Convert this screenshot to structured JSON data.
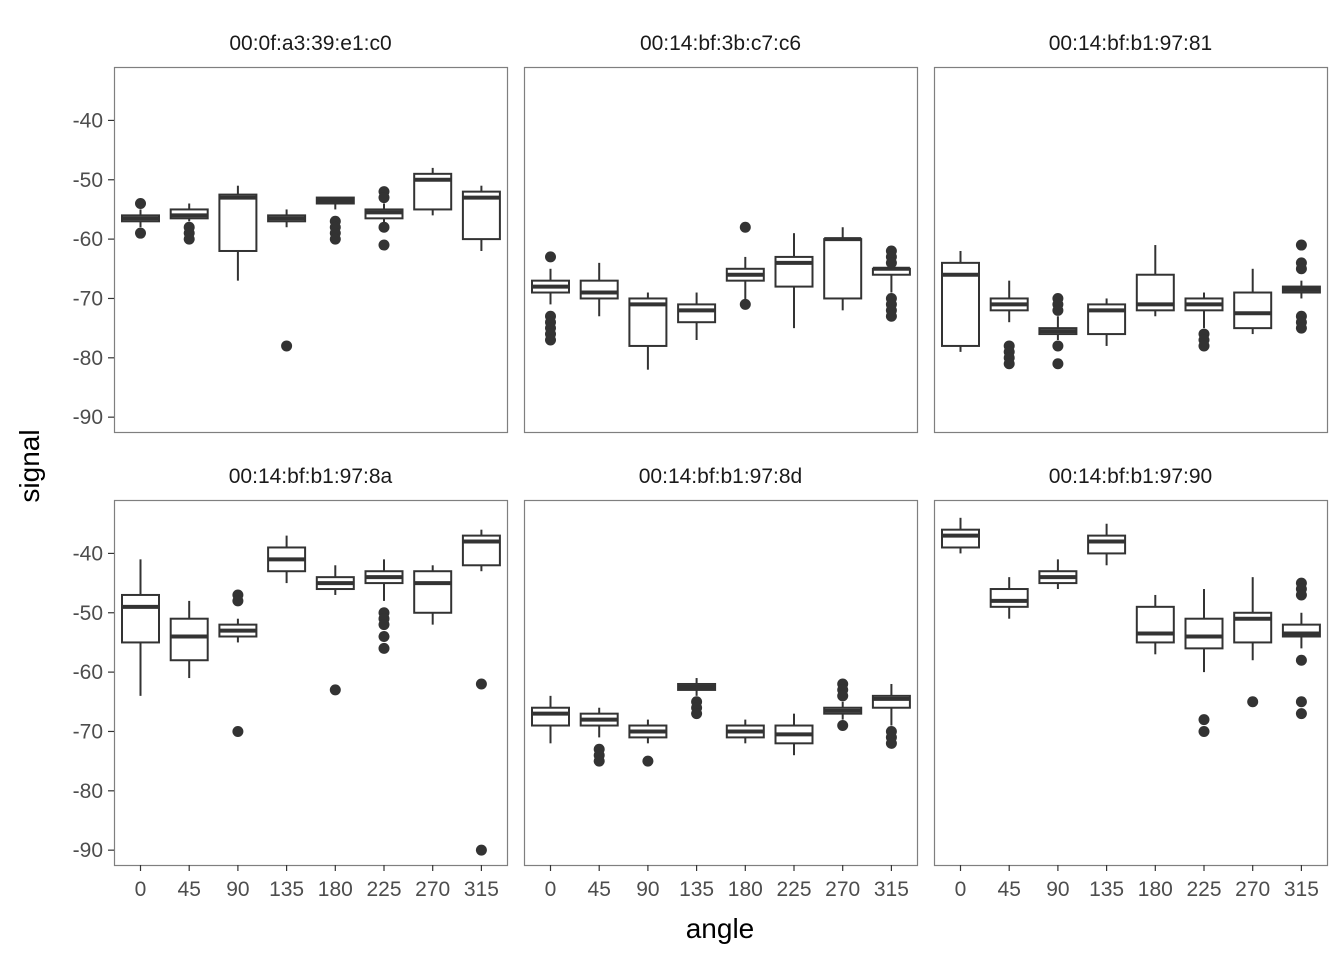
{
  "chart_data": {
    "type": "boxplot",
    "facet_layout": "3 columns x 2 rows",
    "xlabel": "angle",
    "ylabel": "signal",
    "categories": [
      "0",
      "45",
      "90",
      "135",
      "180",
      "225",
      "270",
      "315"
    ],
    "yticks": [
      -40,
      -50,
      -60,
      -70,
      -80,
      -90
    ],
    "ylim": [
      -92.5,
      -31
    ],
    "grid": false,
    "panels": [
      {
        "title": "00:0f:a3:39:e1:c0",
        "boxes": [
          {
            "angle": "0",
            "min": -58,
            "q1": -57,
            "median": -56.5,
            "q3": -56,
            "max": -55,
            "outliers": [
              -54,
              -59
            ]
          },
          {
            "angle": "45",
            "min": -57,
            "q1": -56.5,
            "median": -56,
            "q3": -55,
            "max": -54,
            "outliers": [
              -58,
              -59,
              -60
            ]
          },
          {
            "angle": "90",
            "min": -67,
            "q1": -62,
            "median": -53,
            "q3": -52.5,
            "max": -51,
            "outliers": []
          },
          {
            "angle": "135",
            "min": -58,
            "q1": -57,
            "median": -56.5,
            "q3": -56,
            "max": -55,
            "outliers": [
              -78
            ]
          },
          {
            "angle": "180",
            "min": -55,
            "q1": -54,
            "median": -53.5,
            "q3": -53,
            "max": -53,
            "outliers": [
              -57,
              -58,
              -59,
              -60
            ]
          },
          {
            "angle": "225",
            "min": -58,
            "q1": -56.5,
            "median": -55.5,
            "q3": -55,
            "max": -54,
            "outliers": [
              -52,
              -53,
              -58,
              -61
            ]
          },
          {
            "angle": "270",
            "min": -56,
            "q1": -55,
            "median": -50,
            "q3": -49,
            "max": -48,
            "outliers": []
          },
          {
            "angle": "315",
            "min": -62,
            "q1": -60,
            "median": -53,
            "q3": -52,
            "max": -51,
            "outliers": []
          }
        ]
      },
      {
        "title": "00:14:bf:3b:c7:c6",
        "boxes": [
          {
            "angle": "0",
            "min": -71,
            "q1": -69,
            "median": -68,
            "q3": -67,
            "max": -65,
            "outliers": [
              -63,
              -73,
              -74,
              -75,
              -76,
              -77
            ]
          },
          {
            "angle": "45",
            "min": -73,
            "q1": -70,
            "median": -69,
            "q3": -67,
            "max": -64,
            "outliers": []
          },
          {
            "angle": "90",
            "min": -82,
            "q1": -78,
            "median": -71,
            "q3": -70,
            "max": -69,
            "outliers": []
          },
          {
            "angle": "135",
            "min": -77,
            "q1": -74,
            "median": -72,
            "q3": -71,
            "max": -69,
            "outliers": []
          },
          {
            "angle": "180",
            "min": -71,
            "q1": -67,
            "median": -66,
            "q3": -65,
            "max": -63,
            "outliers": [
              -58,
              -71
            ]
          },
          {
            "angle": "225",
            "min": -75,
            "q1": -68,
            "median": -64,
            "q3": -63,
            "max": -59,
            "outliers": []
          },
          {
            "angle": "270",
            "min": -72,
            "q1": -70,
            "median": -60,
            "q3": -60,
            "max": -58,
            "outliers": []
          },
          {
            "angle": "315",
            "min": -69,
            "q1": -66,
            "median": -65,
            "q3": -65,
            "max": -64,
            "outliers": [
              -62,
              -63,
              -64,
              -70,
              -71,
              -72,
              -73
            ]
          }
        ]
      },
      {
        "title": "00:14:bf:b1:97:81",
        "boxes": [
          {
            "angle": "0",
            "min": -79,
            "q1": -78,
            "median": -66,
            "q3": -64,
            "max": -62,
            "outliers": []
          },
          {
            "angle": "45",
            "min": -74,
            "q1": -72,
            "median": -71,
            "q3": -70,
            "max": -67,
            "outliers": [
              -78,
              -79,
              -80,
              -81
            ]
          },
          {
            "angle": "90",
            "min": -77,
            "q1": -76,
            "median": -75.5,
            "q3": -75,
            "max": -73,
            "outliers": [
              -70,
              -71,
              -72,
              -78,
              -81
            ]
          },
          {
            "angle": "135",
            "min": -78,
            "q1": -76,
            "median": -72,
            "q3": -71,
            "max": -70,
            "outliers": []
          },
          {
            "angle": "180",
            "min": -73,
            "q1": -72,
            "median": -71,
            "q3": -66,
            "max": -61,
            "outliers": []
          },
          {
            "angle": "225",
            "min": -75,
            "q1": -72,
            "median": -71,
            "q3": -70,
            "max": -69,
            "outliers": [
              -76,
              -77,
              -78
            ]
          },
          {
            "angle": "270",
            "min": -76,
            "q1": -75,
            "median": -72.5,
            "q3": -69,
            "max": -65,
            "outliers": []
          },
          {
            "angle": "315",
            "min": -70,
            "q1": -69,
            "median": -68.5,
            "q3": -68,
            "max": -67,
            "outliers": [
              -61,
              -64,
              -65,
              -73,
              -74,
              -75
            ]
          }
        ]
      },
      {
        "title": "00:14:bf:b1:97:8a",
        "boxes": [
          {
            "angle": "0",
            "min": -64,
            "q1": -55,
            "median": -49,
            "q3": -47,
            "max": -41,
            "outliers": []
          },
          {
            "angle": "45",
            "min": -61,
            "q1": -58,
            "median": -54,
            "q3": -51,
            "max": -48,
            "outliers": []
          },
          {
            "angle": "90",
            "min": -55,
            "q1": -54,
            "median": -53,
            "q3": -52,
            "max": -51,
            "outliers": [
              -47,
              -48,
              -70
            ]
          },
          {
            "angle": "135",
            "min": -45,
            "q1": -43,
            "median": -41,
            "q3": -39,
            "max": -37,
            "outliers": []
          },
          {
            "angle": "180",
            "min": -47,
            "q1": -46,
            "median": -45,
            "q3": -44,
            "max": -42,
            "outliers": [
              -63
            ]
          },
          {
            "angle": "225",
            "min": -48,
            "q1": -45,
            "median": -44,
            "q3": -43,
            "max": -41,
            "outliers": [
              -50,
              -51,
              -52,
              -54,
              -56
            ]
          },
          {
            "angle": "270",
            "min": -52,
            "q1": -50,
            "median": -45,
            "q3": -43,
            "max": -42,
            "outliers": []
          },
          {
            "angle": "315",
            "min": -43,
            "q1": -42,
            "median": -38,
            "q3": -37,
            "max": -36,
            "outliers": [
              -62,
              -90
            ]
          }
        ]
      },
      {
        "title": "00:14:bf:b1:97:8d",
        "boxes": [
          {
            "angle": "0",
            "min": -72,
            "q1": -69,
            "median": -67,
            "q3": -66,
            "max": -64,
            "outliers": []
          },
          {
            "angle": "45",
            "min": -71,
            "q1": -69,
            "median": -68,
            "q3": -67,
            "max": -66,
            "outliers": [
              -73,
              -74,
              -75
            ]
          },
          {
            "angle": "90",
            "min": -72,
            "q1": -71,
            "median": -70,
            "q3": -69,
            "max": -68,
            "outliers": [
              -75
            ]
          },
          {
            "angle": "135",
            "min": -64,
            "q1": -63,
            "median": -62.5,
            "q3": -62,
            "max": -61,
            "outliers": [
              -65,
              -66,
              -67
            ]
          },
          {
            "angle": "180",
            "min": -72,
            "q1": -71,
            "median": -70,
            "q3": -69,
            "max": -68,
            "outliers": []
          },
          {
            "angle": "225",
            "min": -74,
            "q1": -72,
            "median": -70.5,
            "q3": -69,
            "max": -67,
            "outliers": []
          },
          {
            "angle": "270",
            "min": -68,
            "q1": -67,
            "median": -66.5,
            "q3": -66,
            "max": -65,
            "outliers": [
              -62,
              -63,
              -64,
              -69
            ]
          },
          {
            "angle": "315",
            "min": -69,
            "q1": -66,
            "median": -64.5,
            "q3": -64,
            "max": -62,
            "outliers": [
              -70,
              -71,
              -72
            ]
          }
        ]
      },
      {
        "title": "00:14:bf:b1:97:90",
        "boxes": [
          {
            "angle": "0",
            "min": -40,
            "q1": -39,
            "median": -37,
            "q3": -36,
            "max": -34,
            "outliers": []
          },
          {
            "angle": "45",
            "min": -51,
            "q1": -49,
            "median": -48,
            "q3": -46,
            "max": -44,
            "outliers": []
          },
          {
            "angle": "90",
            "min": -46,
            "q1": -45,
            "median": -44,
            "q3": -43,
            "max": -41,
            "outliers": []
          },
          {
            "angle": "135",
            "min": -42,
            "q1": -40,
            "median": -38,
            "q3": -37,
            "max": -35,
            "outliers": []
          },
          {
            "angle": "180",
            "min": -57,
            "q1": -55,
            "median": -53.5,
            "q3": -49,
            "max": -47,
            "outliers": []
          },
          {
            "angle": "225",
            "min": -60,
            "q1": -56,
            "median": -54,
            "q3": -51,
            "max": -46,
            "outliers": [
              -68,
              -70
            ]
          },
          {
            "angle": "270",
            "min": -58,
            "q1": -55,
            "median": -51,
            "q3": -50,
            "max": -44,
            "outliers": [
              -65
            ]
          },
          {
            "angle": "315",
            "min": -56,
            "q1": -54,
            "median": -53.5,
            "q3": -52,
            "max": -50,
            "outliers": [
              -45,
              -46,
              -47,
              -58,
              -65,
              -67
            ]
          }
        ]
      }
    ]
  }
}
